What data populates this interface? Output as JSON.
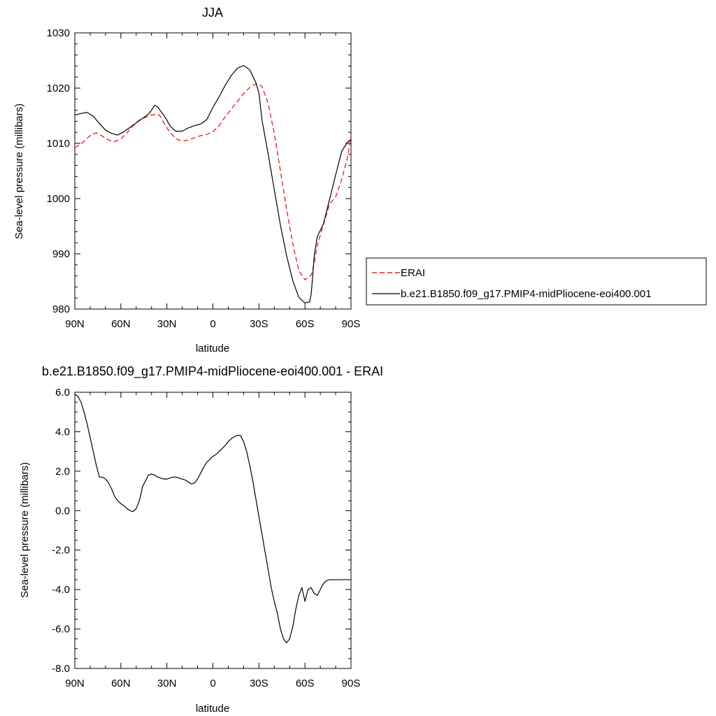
{
  "chart_data": [
    {
      "type": "line",
      "title": "JJA",
      "xlabel": "latitude",
      "ylabel": "Sea-level pressure (millibars)",
      "xlim": [
        90,
        -90
      ],
      "ylim": [
        980,
        1030
      ],
      "x_tick_labels": [
        "90N",
        "60N",
        "30N",
        "0",
        "30S",
        "60S",
        "90S"
      ],
      "y_tick_labels": [
        "980",
        "990",
        "1000",
        "1010",
        "1020",
        "1030"
      ],
      "legend_position": "right",
      "series": [
        {
          "name": "ERAI",
          "color": "#e8262c",
          "dash": "dashed",
          "x": [
            90,
            85,
            80,
            76,
            72,
            68,
            64,
            60,
            56,
            52,
            48,
            44,
            40,
            36,
            34,
            32,
            28,
            24,
            20,
            16,
            12,
            8,
            4,
            0,
            -4,
            -8,
            -12,
            -16,
            -20,
            -24,
            -28,
            -30,
            -32,
            -36,
            -40,
            -44,
            -48,
            -52,
            -56,
            -60,
            -64,
            -66,
            -68,
            -72,
            -76,
            -80,
            -84,
            -88,
            -90
          ],
          "y": [
            1009.2,
            1010.1,
            1011.4,
            1011.9,
            1011.3,
            1010.6,
            1010.3,
            1010.8,
            1011.9,
            1013.2,
            1014.2,
            1014.7,
            1015.1,
            1015.3,
            1014.8,
            1013.7,
            1012.0,
            1010.8,
            1010.4,
            1010.6,
            1011.0,
            1011.4,
            1011.6,
            1012.1,
            1013.2,
            1014.8,
            1016.2,
            1017.6,
            1019.0,
            1020.1,
            1020.8,
            1020.7,
            1020.3,
            1017.2,
            1011.8,
            1005.0,
            998.1,
            991.9,
            986.9,
            985.3,
            986.1,
            988.2,
            991.5,
            995.3,
            999.0,
            1000.3,
            1003.5,
            1007.8,
            1011.5
          ]
        },
        {
          "name": "b.e21.B1850.f09_g17.PMIP4-midPliocene-eoi400.001",
          "color": "#000000",
          "dash": "solid",
          "x": [
            90,
            86,
            82,
            78,
            74,
            70,
            66,
            62,
            58,
            54,
            50,
            46,
            42,
            40,
            38,
            36,
            34,
            32,
            30,
            28,
            26,
            24,
            22,
            20,
            16,
            12,
            8,
            4,
            0,
            -4,
            -8,
            -12,
            -16,
            -20,
            -24,
            -28,
            -30,
            -32,
            -36,
            -40,
            -44,
            -48,
            -52,
            -56,
            -60,
            -63,
            -64,
            -65,
            -66,
            -68,
            -72,
            -76,
            -80,
            -84,
            -88,
            -90
          ],
          "y": [
            1015.1,
            1015.4,
            1015.6,
            1014.9,
            1013.6,
            1012.4,
            1011.8,
            1011.5,
            1012.1,
            1012.9,
            1013.7,
            1014.5,
            1015.3,
            1016.0,
            1016.9,
            1016.6,
            1015.8,
            1015.1,
            1014.2,
            1013.2,
            1012.6,
            1012.2,
            1012.2,
            1012.2,
            1012.8,
            1013.2,
            1013.5,
            1014.3,
            1016.5,
            1018.4,
            1020.5,
            1022.3,
            1023.6,
            1024.1,
            1023.3,
            1021.0,
            1019.1,
            1014.2,
            1008.1,
            1001.6,
            995.2,
            989.7,
            985.2,
            982.1,
            981.1,
            981.3,
            982.6,
            985.8,
            989.6,
            993.1,
            995.4,
            999.8,
            1004.3,
            1008.6,
            1010.3,
            1010.7
          ]
        }
      ]
    },
    {
      "type": "line",
      "title": "b.e21.B1850.f09_g17.PMIP4-midPliocene-eoi400.001 - ERAI",
      "xlabel": "latitude",
      "ylabel": "Sea-level pressure (millibars)",
      "xlim": [
        90,
        -90
      ],
      "ylim": [
        -8,
        6
      ],
      "x_tick_labels": [
        "90N",
        "60N",
        "30N",
        "0",
        "30S",
        "60S",
        "90S"
      ],
      "y_tick_labels": [
        "-8.0",
        "-6.0",
        "-4.0",
        "-2.0",
        "0.0",
        "2.0",
        "4.0",
        "6.0"
      ],
      "series": [
        {
          "color": "#000000",
          "dash": "solid",
          "x": [
            90,
            88,
            86,
            84,
            82,
            80,
            78,
            76,
            74,
            72,
            70,
            68,
            66,
            64,
            62,
            60,
            58,
            56,
            54,
            52,
            50,
            48,
            47,
            46,
            44,
            42,
            40,
            38,
            36,
            34,
            32,
            30,
            28,
            26,
            24,
            22,
            20,
            18,
            16,
            14,
            12,
            10,
            8,
            6,
            4,
            2,
            0,
            -2,
            -4,
            -6,
            -8,
            -10,
            -12,
            -14,
            -16,
            -18,
            -20,
            -22,
            -24,
            -26,
            -28,
            -30,
            -32,
            -34,
            -36,
            -38,
            -40,
            -42,
            -44,
            -46,
            -48,
            -50,
            -52,
            -54,
            -56,
            -58,
            -60,
            -62,
            -64,
            -66,
            -68,
            -70,
            -72,
            -74,
            -76,
            -78,
            -80,
            -82,
            -83,
            -84,
            -85,
            -86,
            -87,
            -88,
            -89,
            -90
          ],
          "y": [
            5.9,
            5.8,
            5.5,
            5.0,
            4.4,
            3.7,
            3.0,
            2.3,
            1.7,
            1.7,
            1.6,
            1.4,
            1.1,
            0.7,
            0.5,
            0.35,
            0.25,
            0.1,
            0.0,
            -0.05,
            0.1,
            0.5,
            0.8,
            1.2,
            1.5,
            1.8,
            1.85,
            1.8,
            1.7,
            1.65,
            1.6,
            1.6,
            1.65,
            1.7,
            1.7,
            1.65,
            1.6,
            1.55,
            1.45,
            1.35,
            1.4,
            1.6,
            1.9,
            2.2,
            2.45,
            2.6,
            2.75,
            2.85,
            3.0,
            3.15,
            3.3,
            3.5,
            3.65,
            3.75,
            3.82,
            3.8,
            3.5,
            3.0,
            2.3,
            1.5,
            0.6,
            -0.3,
            -1.2,
            -2.1,
            -3.0,
            -3.9,
            -4.6,
            -5.2,
            -6.0,
            -6.5,
            -6.7,
            -6.5,
            -5.9,
            -5.0,
            -4.3,
            -3.9,
            -4.6,
            -4.0,
            -3.9,
            -4.2,
            -4.3,
            -4.0,
            -3.7,
            -3.55,
            -3.5,
            -3.5,
            -3.5,
            -3.5,
            -3.5,
            -3.5,
            -3.5,
            -3.5,
            -3.5,
            -3.5,
            -3.5,
            -3.5
          ]
        }
      ]
    }
  ]
}
